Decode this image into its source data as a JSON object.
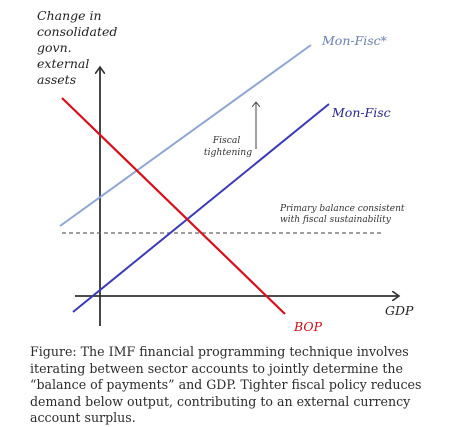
{
  "diagram": {
    "y_axis_label_lines": [
      "Change in",
      "consolidated",
      "govn.",
      "external",
      "assets"
    ],
    "x_axis_label": "GDP",
    "lines": {
      "mon_fisc_star": {
        "label": "Mon-Fisc*",
        "color": "#8fa6d4"
      },
      "mon_fisc": {
        "label": "Mon-Fisc",
        "color": "#3a3ab8"
      },
      "bop": {
        "label": "BOP",
        "color": "#d8101c"
      },
      "primary_balance": {
        "label_lines": [
          "Primary balance consistent",
          "with fiscal sustainability"
        ],
        "color": "#666666"
      }
    },
    "annotation": {
      "label_lines": [
        "Fiscal",
        "tightening"
      ]
    },
    "axis_color": "#333333"
  },
  "caption": "Figure: The IMF financial programming technique involves iterating between sector accounts to jointly determine the “balance of payments” and GDP. Tighter fiscal policy reduces demand below output, contributing to an external currency account surplus."
}
